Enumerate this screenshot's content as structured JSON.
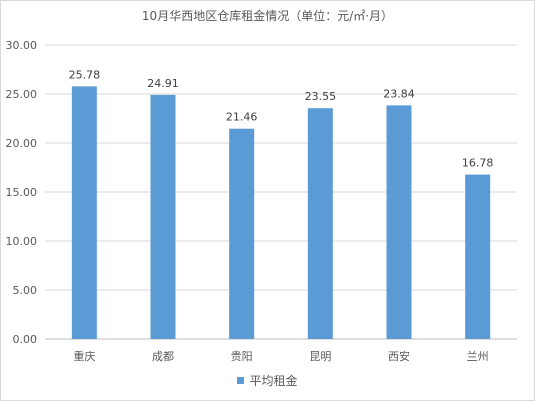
{
  "chart_data": {
    "type": "bar",
    "title": "10月华西地区仓库租金情况（单位：元/㎡·月）",
    "categories": [
      "重庆",
      "成都",
      "贵阳",
      "昆明",
      "西安",
      "兰州"
    ],
    "series": [
      {
        "name": "平均租金",
        "values": [
          25.78,
          24.91,
          21.46,
          23.55,
          23.84,
          16.78
        ],
        "color": "#5b9bd5"
      }
    ],
    "data_labels": [
      "25.78",
      "24.91",
      "21.46",
      "23.55",
      "23.84",
      "16.78"
    ],
    "y_ticks": [
      "0.00",
      "5.00",
      "10.00",
      "15.00",
      "20.00",
      "25.00",
      "30.00"
    ],
    "ylim": [
      0,
      30
    ],
    "xlabel": "",
    "ylabel": "",
    "grid": true,
    "legend": "bottom"
  }
}
